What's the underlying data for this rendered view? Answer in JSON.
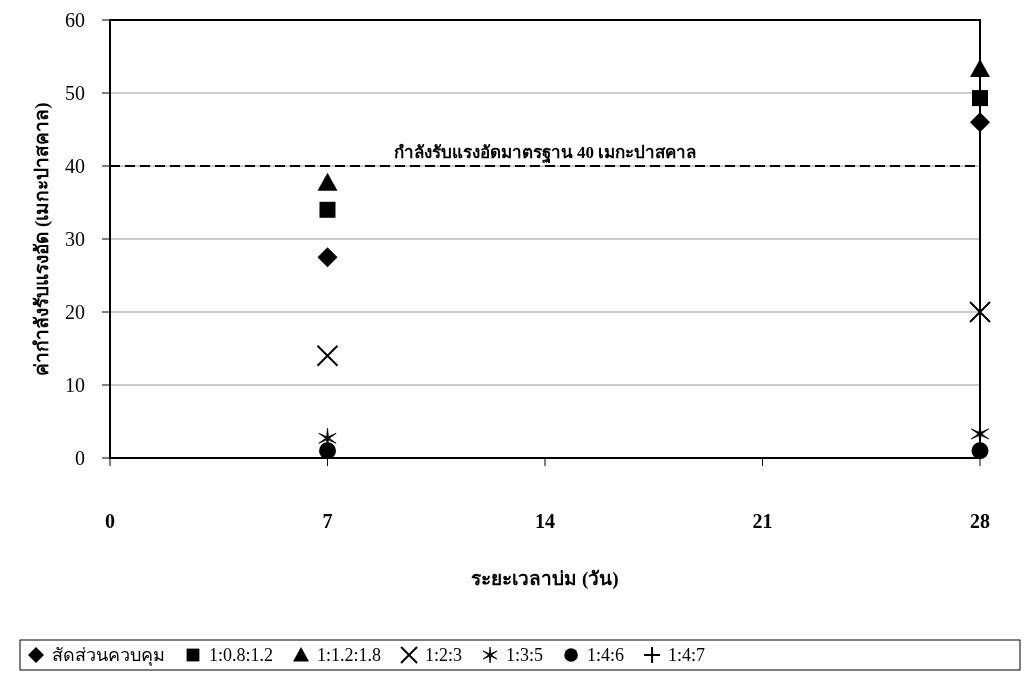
{
  "chart_data": {
    "type": "scatter",
    "xlabel": "ระยะเวลาบ่ม (วัน)",
    "ylabel": "ค่ากำลังรับแรงอัด (เมกะปาสคาล)",
    "x": [
      7,
      28
    ],
    "xlim": [
      0,
      28
    ],
    "xticks": [
      0,
      7,
      14,
      21,
      28
    ],
    "ylim": [
      0,
      60
    ],
    "yticks": [
      0,
      10,
      20,
      30,
      40,
      50,
      60
    ],
    "grid": "y",
    "legend": "bottom",
    "ref_lines": [
      {
        "axis": "y",
        "value": 40,
        "label": "กำลังรับแรงอัดมาตรฐาน 40 เมกะปาสคาล",
        "color": "#000000",
        "line_style": "dashed"
      }
    ],
    "series": [
      {
        "name": "สัดส่วนควบคุม",
        "color": "#000000",
        "marker": "diamond",
        "values": [
          27.5,
          46
        ]
      },
      {
        "name": "1:0.8:1.2",
        "color": "#000000",
        "marker": "square",
        "values": [
          34,
          49.3
        ]
      },
      {
        "name": "1:1.2:1.8",
        "color": "#000000",
        "marker": "triangle",
        "values": [
          37.7,
          53.3
        ]
      },
      {
        "name": "1:2:3",
        "color": "#000000",
        "marker": "x",
        "values": [
          14,
          20
        ]
      },
      {
        "name": "1:3:5",
        "color": "#000000",
        "values": [
          2.7,
          3.3
        ]
      },
      {
        "name": "1:4:6",
        "color": "#000000",
        "marker": "circle",
        "values": [
          1,
          1
        ]
      },
      {
        "name": "1:4:7",
        "color": "#000000",
        "marker": "cross",
        "values": [
          null,
          null
        ]
      }
    ]
  }
}
